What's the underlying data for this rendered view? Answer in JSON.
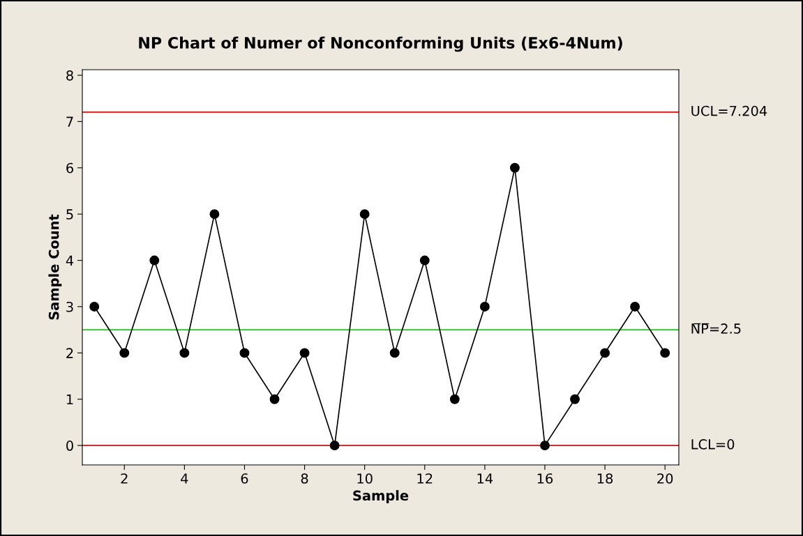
{
  "chart_data": {
    "type": "line",
    "title": "NP Chart of Numer of Nonconforming Units (Ex6-4Num)",
    "xlabel": "Sample",
    "ylabel": "Sample Count",
    "x": [
      1,
      2,
      3,
      4,
      5,
      6,
      7,
      8,
      9,
      10,
      11,
      12,
      13,
      14,
      15,
      16,
      17,
      18,
      19,
      20
    ],
    "series": [
      {
        "color": "#000000",
        "values": [
          3,
          2,
          4,
          2,
          5,
          2,
          1,
          2,
          0,
          5,
          2,
          4,
          1,
          3,
          6,
          0,
          1,
          2,
          3,
          2
        ]
      }
    ],
    "marker": "circle",
    "line_style": "solid",
    "grid": false,
    "legend": false,
    "xlim": [
      0.6,
      20.46
    ],
    "ylim": [
      -0.42,
      8.12
    ],
    "xticks": [
      2,
      4,
      6,
      8,
      10,
      12,
      14,
      16,
      18,
      20
    ],
    "yticks": [
      0,
      1,
      2,
      3,
      4,
      5,
      6,
      7,
      8
    ],
    "ref_lines": [
      {
        "axis": "y",
        "value": 7.204,
        "label": "UCL=7.204",
        "color": "#ff0000"
      },
      {
        "axis": "y",
        "value": 2.5,
        "label": "N̅P̅=2.5",
        "color": "#00e000"
      },
      {
        "axis": "y",
        "value": 0,
        "label": "LCL=0",
        "color": "#ff0000"
      }
    ]
  }
}
